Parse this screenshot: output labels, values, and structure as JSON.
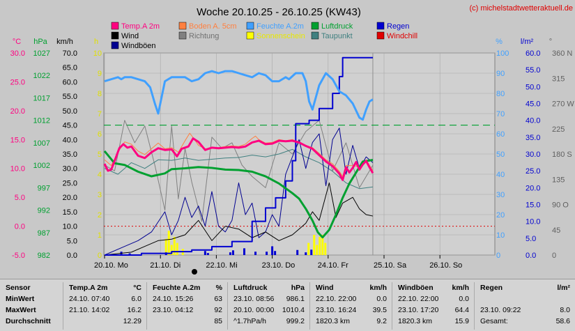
{
  "title": "Woche 20.10.25 - 26.10.25 (KW43)",
  "copyright": "(c) michelstadtwetteraktuell.de",
  "legend": [
    {
      "label": "Temp.A 2m",
      "color": "#ff0080"
    },
    {
      "label": "Boden A. 5cm",
      "color": "#ff8040"
    },
    {
      "label": "Feuchte A.2m",
      "color": "#40a0ff"
    },
    {
      "label": "Luftdruck",
      "color": "#00a030"
    },
    {
      "label": "Regen",
      "color": "#0000d0"
    },
    {
      "label": "Wind",
      "color": "#000000"
    },
    {
      "label": "Richtung",
      "color": "#808080"
    },
    {
      "label": "Sonnenschein",
      "color": "#ffff00"
    },
    {
      "label": "Taupunkt",
      "color": "#408080"
    },
    {
      "label": "Windchill",
      "color": "#e00000"
    },
    {
      "label": "Windböen",
      "color": "#000090"
    }
  ],
  "chart_data": {
    "type": "line",
    "x_ticks": [
      "20.10. Mo",
      "21.10. Di",
      "22.10. Mi",
      "23.10. Do",
      "24.10. Fr",
      "25.10. Sa",
      "26.10. So"
    ],
    "axes_left": {
      "temp": {
        "unit": "°C",
        "ticks": [
          "30.0",
          "25.0",
          "20.0",
          "15.0",
          "10.0",
          "5.0",
          "0.0",
          "-5.0"
        ],
        "color": "#ff0080"
      },
      "pressure": {
        "unit": "hPa",
        "ticks": [
          "1027",
          "1022",
          "1017",
          "1012",
          "1007",
          "1002",
          "997",
          "992",
          "987",
          "982"
        ],
        "color": "#00a030"
      },
      "wind": {
        "unit": "km/h",
        "ticks": [
          "70.0",
          "65.0",
          "60.0",
          "55.0",
          "50.0",
          "45.0",
          "40.0",
          "35.0",
          "30.0",
          "25.0",
          "20.0",
          "15.0",
          "10.0",
          "5.0",
          "0.0"
        ],
        "color": "#000000"
      },
      "sun": {
        "unit": "h",
        "ticks": [
          "10",
          "9",
          "8",
          "7",
          "6",
          "5",
          "4",
          "3",
          "2",
          "1",
          "0"
        ],
        "color": "#e0e000"
      }
    },
    "axes_right": {
      "humidity": {
        "unit": "%",
        "ticks": [
          "100",
          "90",
          "80",
          "70",
          "60",
          "50",
          "40",
          "30",
          "20",
          "10",
          "0"
        ],
        "color": "#40a0ff"
      },
      "rain": {
        "unit": "l/m²",
        "ticks": [
          "60.0",
          "55.0",
          "50.0",
          "45.0",
          "40.0",
          "35.0",
          "30.0",
          "25.0",
          "20.0",
          "15.0",
          "10.0",
          "5.0",
          "0.0"
        ],
        "color": "#0000d0"
      },
      "direction": {
        "unit": "°",
        "ticks": [
          "360 N",
          "315",
          "270 W",
          "225",
          "180 S",
          "135",
          "90 O",
          "45",
          "0"
        ],
        "color": "#606060"
      }
    },
    "temp_2m": [
      [
        0,
        10.8
      ],
      [
        0.05,
        9.6
      ],
      [
        0.1,
        9.8
      ],
      [
        0.15,
        11.3
      ],
      [
        0.22,
        13.5
      ],
      [
        0.28,
        14.2
      ],
      [
        0.34,
        13.6
      ],
      [
        0.4,
        13.8
      ],
      [
        0.5,
        12.2
      ],
      [
        0.6,
        11.8
      ],
      [
        0.7,
        12.8
      ],
      [
        0.8,
        13.5
      ],
      [
        0.9,
        13.2
      ],
      [
        1.0,
        13.3
      ],
      [
        1.08,
        12.1
      ],
      [
        1.15,
        13.4
      ],
      [
        1.25,
        13.8
      ],
      [
        1.32,
        15.2
      ],
      [
        1.4,
        14.6
      ],
      [
        1.5,
        13.2
      ],
      [
        1.6,
        13.6
      ],
      [
        1.7,
        13.5
      ],
      [
        1.8,
        13.6
      ],
      [
        1.9,
        13.7
      ],
      [
        2.0,
        13.6
      ],
      [
        2.1,
        13.8
      ],
      [
        2.2,
        14.5
      ],
      [
        2.3,
        14.8
      ],
      [
        2.4,
        14.2
      ],
      [
        2.5,
        14.3
      ],
      [
        2.6,
        14.8
      ],
      [
        2.7,
        14.7
      ],
      [
        2.8,
        14.8
      ],
      [
        2.9,
        14.5
      ],
      [
        3.0,
        13.9
      ],
      [
        3.1,
        13.4
      ],
      [
        3.2,
        12.3
      ],
      [
        3.3,
        11.2
      ],
      [
        3.4,
        10.4
      ],
      [
        3.5,
        9.1
      ],
      [
        3.55,
        8.0
      ],
      [
        3.6,
        10.2
      ],
      [
        3.65,
        9.3
      ],
      [
        3.7,
        10.1
      ],
      [
        3.75,
        11.1
      ],
      [
        3.8,
        9.8
      ],
      [
        3.85,
        10.7
      ],
      [
        3.9,
        11.3
      ],
      [
        3.95,
        10.2
      ],
      [
        4.0,
        9.2
      ]
    ],
    "soil_5cm": [
      [
        0,
        11.5
      ],
      [
        0.1,
        10.5
      ],
      [
        0.2,
        12.8
      ],
      [
        0.3,
        14.6
      ],
      [
        0.4,
        14.2
      ],
      [
        0.5,
        13.0
      ],
      [
        0.6,
        12.4
      ],
      [
        0.7,
        13.4
      ],
      [
        0.8,
        14.4
      ],
      [
        0.9,
        13.4
      ],
      [
        1.0,
        13.6
      ],
      [
        1.1,
        12.8
      ],
      [
        1.2,
        14.8
      ],
      [
        1.27,
        16.1
      ],
      [
        1.33,
        15.2
      ],
      [
        1.4,
        14.0
      ],
      [
        1.5,
        13.4
      ],
      [
        1.6,
        13.5
      ],
      [
        1.7,
        13.6
      ],
      [
        1.8,
        13.8
      ],
      [
        1.9,
        13.9
      ],
      [
        2.0,
        13.8
      ],
      [
        2.1,
        14.2
      ],
      [
        2.2,
        15.2
      ],
      [
        2.25,
        15.6
      ],
      [
        2.3,
        15.0
      ],
      [
        2.4,
        14.4
      ],
      [
        2.5,
        14.5
      ],
      [
        2.6,
        15.0
      ],
      [
        2.7,
        14.8
      ],
      [
        2.8,
        15.0
      ],
      [
        2.9,
        14.6
      ],
      [
        3.0,
        14.0
      ],
      [
        3.1,
        13.6
      ],
      [
        3.2,
        12.6
      ],
      [
        3.3,
        11.5
      ],
      [
        3.4,
        10.8
      ],
      [
        3.5,
        9.5
      ],
      [
        3.55,
        8.6
      ],
      [
        3.6,
        10.5
      ],
      [
        3.7,
        10.5
      ],
      [
        3.8,
        10.3
      ],
      [
        3.9,
        11.5
      ],
      [
        4.0,
        9.6
      ]
    ],
    "humidity_2m": [
      [
        0,
        86
      ],
      [
        0.1,
        87
      ],
      [
        0.2,
        88
      ],
      [
        0.25,
        87
      ],
      [
        0.3,
        88
      ],
      [
        0.4,
        88
      ],
      [
        0.5,
        87
      ],
      [
        0.6,
        86
      ],
      [
        0.68,
        83
      ],
      [
        0.75,
        75
      ],
      [
        0.8,
        70
      ],
      [
        0.85,
        78
      ],
      [
        0.9,
        86
      ],
      [
        1.0,
        88
      ],
      [
        1.1,
        88
      ],
      [
        1.2,
        88
      ],
      [
        1.3,
        86
      ],
      [
        1.4,
        87
      ],
      [
        1.5,
        90
      ],
      [
        1.6,
        91
      ],
      [
        1.7,
        90
      ],
      [
        1.8,
        91
      ],
      [
        1.9,
        91
      ],
      [
        2.0,
        90
      ],
      [
        2.1,
        89
      ],
      [
        2.2,
        88
      ],
      [
        2.3,
        90
      ],
      [
        2.4,
        89
      ],
      [
        2.5,
        86
      ],
      [
        2.6,
        86
      ],
      [
        2.7,
        88
      ],
      [
        2.75,
        87
      ],
      [
        2.85,
        90
      ],
      [
        2.95,
        90
      ],
      [
        3.0,
        86
      ],
      [
        3.05,
        76
      ],
      [
        3.1,
        72
      ],
      [
        3.2,
        84
      ],
      [
        3.3,
        90
      ],
      [
        3.4,
        87
      ],
      [
        3.5,
        81
      ],
      [
        3.6,
        79
      ],
      [
        3.7,
        75
      ],
      [
        3.8,
        68
      ],
      [
        3.85,
        67
      ],
      [
        3.9,
        72
      ],
      [
        3.95,
        76
      ],
      [
        4.0,
        77
      ]
    ],
    "pressure": [
      [
        0,
        1006.7
      ],
      [
        0.15,
        1003.8
      ],
      [
        0.3,
        1003.4
      ],
      [
        0.5,
        1001.8
      ],
      [
        0.7,
        1000.7
      ],
      [
        0.9,
        1001.4
      ],
      [
        1.0,
        1002.4
      ],
      [
        1.2,
        1002.6
      ],
      [
        1.4,
        1002.9
      ],
      [
        1.6,
        1002.7
      ],
      [
        1.8,
        1002.3
      ],
      [
        2.0,
        1002.2
      ],
      [
        2.2,
        1001.8
      ],
      [
        2.4,
        1000.7
      ],
      [
        2.6,
        999.0
      ],
      [
        2.8,
        996.7
      ],
      [
        2.9,
        995.4
      ],
      [
        3.0,
        993.0
      ],
      [
        3.1,
        990.2
      ],
      [
        3.18,
        987.4
      ],
      [
        3.25,
        986.2
      ],
      [
        3.35,
        988.0
      ],
      [
        3.45,
        991.6
      ],
      [
        3.55,
        995.6
      ],
      [
        3.65,
        999.0
      ],
      [
        3.75,
        1001.6
      ],
      [
        3.85,
        1004.2
      ],
      [
        4.0,
        1004.6
      ]
    ],
    "dewpoint": [
      [
        0,
        10.0
      ],
      [
        0.2,
        9.0
      ],
      [
        0.4,
        11.0
      ],
      [
        0.6,
        10.0
      ],
      [
        0.8,
        11.5
      ],
      [
        1.0,
        11.4
      ],
      [
        1.2,
        11.8
      ],
      [
        1.4,
        11.4
      ],
      [
        1.6,
        11.6
      ],
      [
        1.8,
        11.8
      ],
      [
        2.0,
        11.9
      ],
      [
        2.2,
        12.3
      ],
      [
        2.4,
        12.0
      ],
      [
        2.6,
        12.5
      ],
      [
        2.8,
        13.3
      ],
      [
        3.0,
        12.0
      ],
      [
        3.2,
        11.0
      ],
      [
        3.4,
        9.5
      ],
      [
        3.6,
        7.5
      ],
      [
        3.8,
        6.5
      ],
      [
        4.0,
        6.8
      ]
    ],
    "wind": [
      [
        0,
        0
      ],
      [
        0.4,
        1
      ],
      [
        0.6,
        3
      ],
      [
        0.8,
        5
      ],
      [
        1.0,
        5.5
      ],
      [
        1.2,
        7
      ],
      [
        1.4,
        12
      ],
      [
        1.6,
        5
      ],
      [
        1.8,
        10
      ],
      [
        2.0,
        9
      ],
      [
        2.2,
        6
      ],
      [
        2.4,
        8
      ],
      [
        2.6,
        5
      ],
      [
        2.8,
        7
      ],
      [
        2.9,
        9
      ],
      [
        3.0,
        11
      ],
      [
        3.1,
        15
      ],
      [
        3.2,
        12
      ],
      [
        3.35,
        25
      ],
      [
        3.45,
        13
      ],
      [
        3.55,
        18
      ],
      [
        3.7,
        20
      ],
      [
        3.8,
        16
      ],
      [
        3.9,
        14
      ],
      [
        4.0,
        13.5
      ]
    ],
    "gusts": [
      [
        0,
        0
      ],
      [
        0.3,
        3
      ],
      [
        0.5,
        5
      ],
      [
        0.7,
        8
      ],
      [
        0.9,
        15
      ],
      [
        1.0,
        7
      ],
      [
        1.1,
        12
      ],
      [
        1.2,
        20
      ],
      [
        1.3,
        13
      ],
      [
        1.4,
        17
      ],
      [
        1.5,
        10
      ],
      [
        1.6,
        22
      ],
      [
        1.7,
        10
      ],
      [
        1.8,
        8
      ],
      [
        1.9,
        12
      ],
      [
        2.0,
        25
      ],
      [
        2.1,
        14
      ],
      [
        2.2,
        18
      ],
      [
        2.3,
        6
      ],
      [
        2.4,
        8
      ],
      [
        2.5,
        14
      ],
      [
        2.6,
        10
      ],
      [
        2.7,
        28
      ],
      [
        2.8,
        34
      ],
      [
        2.9,
        40
      ],
      [
        3.0,
        30
      ],
      [
        3.1,
        39
      ],
      [
        3.2,
        42
      ],
      [
        3.3,
        24
      ],
      [
        3.4,
        40
      ],
      [
        3.5,
        44
      ],
      [
        3.6,
        28
      ],
      [
        3.7,
        38
      ],
      [
        3.8,
        30
      ],
      [
        3.9,
        34
      ],
      [
        4.0,
        32
      ]
    ],
    "direction": [
      [
        0,
        160
      ],
      [
        0.15,
        150
      ],
      [
        0.3,
        240
      ],
      [
        0.45,
        200
      ],
      [
        0.6,
        230
      ],
      [
        0.75,
        160
      ],
      [
        0.9,
        80
      ],
      [
        1.0,
        230
      ],
      [
        1.1,
        100
      ],
      [
        1.2,
        190
      ],
      [
        1.3,
        130
      ],
      [
        1.45,
        60
      ],
      [
        1.6,
        210
      ],
      [
        1.75,
        190
      ],
      [
        1.9,
        200
      ],
      [
        2.05,
        160
      ],
      [
        2.2,
        140
      ],
      [
        2.4,
        120
      ],
      [
        2.6,
        200
      ],
      [
        2.8,
        180
      ],
      [
        3.0,
        220
      ],
      [
        3.2,
        240
      ],
      [
        3.4,
        150
      ],
      [
        3.6,
        200
      ],
      [
        3.8,
        120
      ],
      [
        4.0,
        160
      ]
    ],
    "rain_cumulative": [
      [
        0,
        0
      ],
      [
        0.3,
        0
      ],
      [
        0.55,
        0.5
      ],
      [
        1.0,
        1.0
      ],
      [
        1.3,
        1.5
      ],
      [
        1.6,
        2.5
      ],
      [
        1.9,
        4.0
      ],
      [
        2.2,
        10.0
      ],
      [
        2.4,
        14.0
      ],
      [
        2.55,
        17.0
      ],
      [
        2.7,
        22.0
      ],
      [
        2.8,
        28.0
      ],
      [
        2.85,
        39.0
      ],
      [
        3.05,
        40.0
      ],
      [
        3.2,
        43.5
      ],
      [
        3.4,
        48.0
      ],
      [
        3.5,
        53.0
      ],
      [
        3.55,
        58.6
      ],
      [
        4.0,
        58.6
      ]
    ],
    "rain_bars": [
      [
        0.3,
        1.0
      ],
      [
        0.45,
        0.5
      ],
      [
        1.1,
        0.8
      ],
      [
        1.8,
        1.2
      ],
      [
        1.85,
        0.6
      ],
      [
        2.25,
        0.8
      ],
      [
        2.3,
        1.4
      ],
      [
        2.5,
        2.0
      ],
      [
        2.7,
        1.0
      ],
      [
        2.9,
        1.0
      ],
      [
        3.0,
        2.6
      ],
      [
        3.05,
        1.2
      ],
      [
        3.45,
        1.5
      ],
      [
        3.6,
        0.8
      ],
      [
        3.7,
        1.6
      ]
    ],
    "sun_bars": [
      [
        1.1,
        0.8
      ],
      [
        1.15,
        1.2
      ],
      [
        1.2,
        0.5
      ],
      [
        1.25,
        0.9
      ],
      [
        1.3,
        0.6
      ],
      [
        1.4,
        0.3
      ],
      [
        3.65,
        0.6
      ],
      [
        3.75,
        1.0
      ],
      [
        3.8,
        0.5
      ],
      [
        3.85,
        0.9
      ],
      [
        3.9,
        1.0
      ],
      [
        3.95,
        0.6
      ]
    ],
    "reference_line_green": 45,
    "reference_line_red": 0
  },
  "stats": {
    "row_labels": [
      "Sensor",
      "MinWert",
      "MaxWert",
      "Durchschnitt"
    ],
    "columns": [
      {
        "name": "Temp.A 2m",
        "unit": "°C",
        "rows": [
          [
            "24.10.  07:40",
            "6.0"
          ],
          [
            "21.10.  14:02",
            "16.2"
          ],
          [
            "",
            "12.29"
          ]
        ]
      },
      {
        "name": "Feuchte A.2m",
        "unit": "%",
        "rows": [
          [
            "24.10.  15:26",
            "63"
          ],
          [
            "23.10.  04:12",
            "92"
          ],
          [
            "",
            "85"
          ]
        ]
      },
      {
        "name": "Luftdruck",
        "unit": "hPa",
        "rows": [
          [
            "23.10.  08:56",
            "986.1"
          ],
          [
            "20.10.  00:00",
            "1010.4"
          ],
          [
            "^1.7hPa/h",
            "999.2"
          ]
        ]
      },
      {
        "name": "Wind",
        "unit": "km/h",
        "rows": [
          [
            "22.10.  22:00",
            "0.0"
          ],
          [
            "23.10.  16:24",
            "39.5"
          ],
          [
            "1820.3 km",
            "9.2"
          ]
        ]
      },
      {
        "name": "Windböen",
        "unit": "km/h",
        "rows": [
          [
            "22.10.  22:00",
            "0.0"
          ],
          [
            "23.10.  17:20",
            "64.4"
          ],
          [
            "1820.3 km",
            "15.9"
          ]
        ]
      },
      {
        "name": "Regen",
        "unit": "l/m²",
        "rows": [
          [
            "",
            ""
          ],
          [
            "23.10.  09:22",
            "8.0"
          ],
          [
            "Gesamt:",
            "58.6"
          ]
        ]
      }
    ]
  }
}
